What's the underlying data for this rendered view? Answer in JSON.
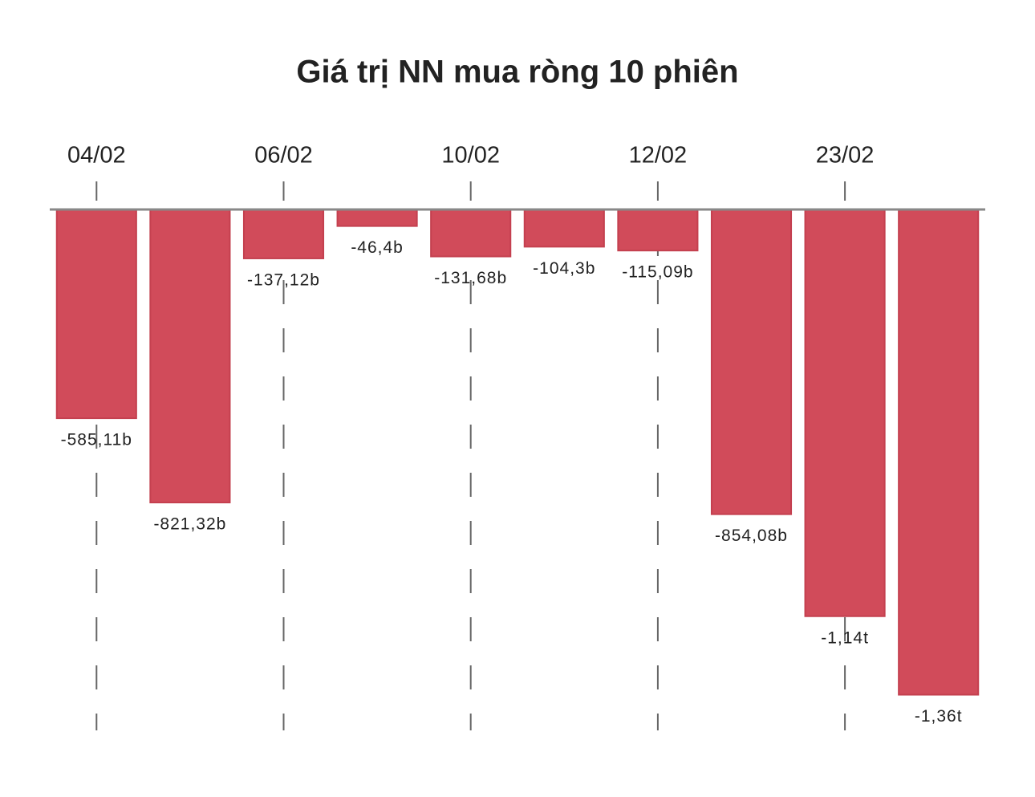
{
  "chart_data": {
    "type": "bar",
    "title": "Giá trị NN mua ròng 10 phiên",
    "categories": [
      "04/02",
      null,
      "06/02",
      null,
      "10/02",
      null,
      "12/02",
      null,
      "23/02",
      null
    ],
    "values": [
      -585.11,
      -821.32,
      -137.12,
      -46.4,
      -131.68,
      -104.3,
      -115.09,
      -854.08,
      -1140,
      -1360
    ],
    "value_labels": [
      "-585,11b",
      "-821,32b",
      "-137,12b",
      "-46,4b",
      "-131,68b",
      "-104,3b",
      "-115,09b",
      "-854,08b",
      "-1,14t",
      "-1,36t"
    ],
    "color": "#d14b5a",
    "ylim": [
      -1460,
      0
    ]
  }
}
